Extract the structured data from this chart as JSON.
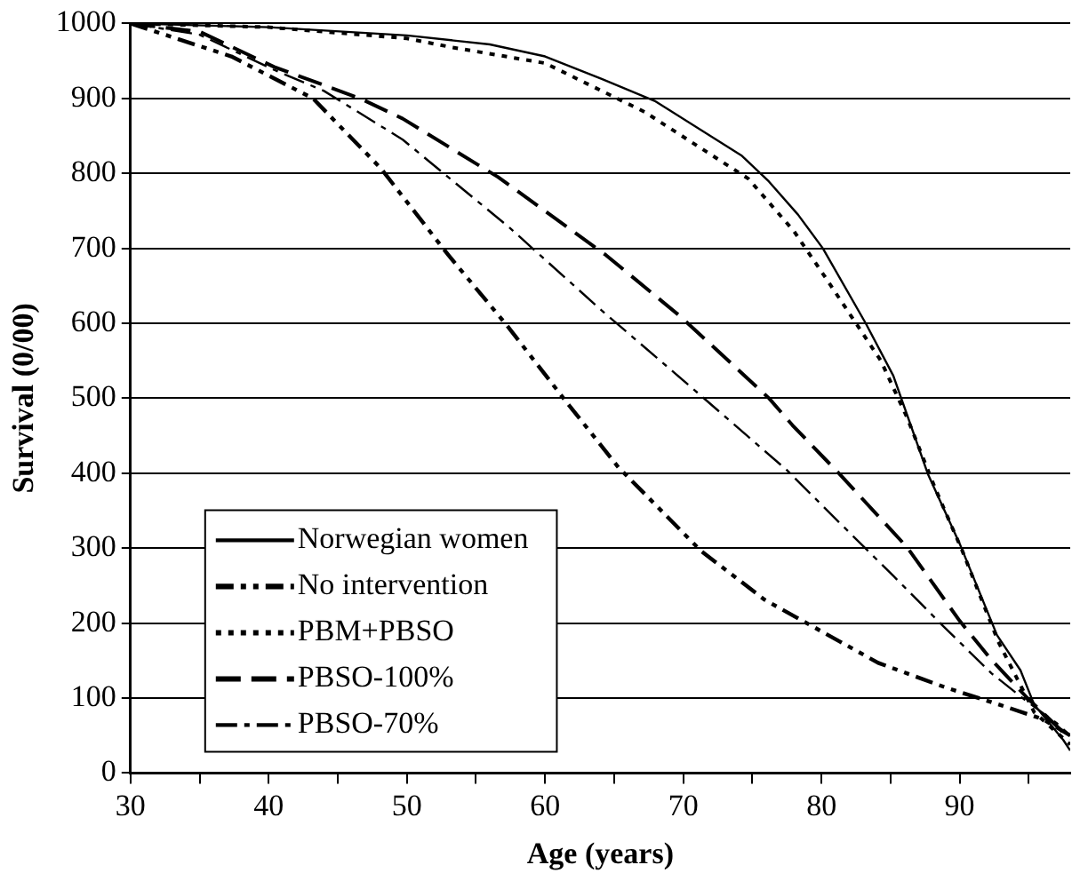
{
  "chart_data": {
    "type": "line",
    "xlabel": "Age (years)",
    "ylabel": "Survival (0/00)",
    "xlim": [
      30,
      98
    ],
    "ylim": [
      0,
      1000
    ],
    "xticks": [
      30,
      {
        "value": 35,
        "label": null
      },
      40,
      {
        "value": 45,
        "label": null
      },
      50,
      {
        "value": 55,
        "label": null
      },
      60,
      {
        "value": 65,
        "label": null
      },
      70,
      {
        "value": 75,
        "label": null
      },
      80,
      {
        "value": 85,
        "label": null
      },
      90,
      {
        "value": 95,
        "label": null
      }
    ],
    "yticks": [
      0,
      100,
      200,
      300,
      400,
      500,
      600,
      700,
      800,
      900,
      1000
    ],
    "grid": "y",
    "legend": "bottom left",
    "marker": "none",
    "series": [
      {
        "name": "Norwegian women",
        "color": "#000000",
        "line_style": "solid",
        "x": [
          30,
          40,
          50,
          56,
          60,
          64.1,
          68,
          74.2,
          76.2,
          78.3,
          80.1,
          83.2,
          85.2,
          87.7,
          90,
          92.7,
          94.4,
          95.4,
          97.5,
          98
        ],
        "values": [
          1000,
          995,
          984,
          972,
          956,
          926,
          896,
          824,
          789,
          745,
          700,
          600,
          530,
          399,
          306,
          184,
          137,
          91,
          44,
          30
        ]
      },
      {
        "name": "No intervention",
        "color": "#000000",
        "line_style": "dashdotdot",
        "x": [
          30,
          37.3,
          43.2,
          48.1,
          53,
          57.2,
          61.5,
          65.3,
          71.3,
          75.9,
          80,
          84.1,
          89,
          92.9,
          96,
          98
        ],
        "values": [
          1000,
          956,
          900,
          807,
          691,
          598,
          496,
          408,
          296,
          231,
          189,
          147,
          114,
          91,
          72,
          50
        ]
      },
      {
        "name": "PBM+PBSO",
        "color": "#000000",
        "line_style": "dotted",
        "x": [
          30,
          40,
          50,
          53.3,
          60,
          67.2,
          74.7,
          78,
          80.4,
          84.3,
          86.2,
          88.2,
          90.2,
          92.8,
          95.4,
          98
        ],
        "values": [
          1000,
          995,
          980,
          968,
          947,
          882,
          793,
          723,
          658,
          550,
          474,
          381,
          296,
          175,
          81,
          38
        ]
      },
      {
        "name": "PBSO-100%",
        "color": "#000000",
        "line_style": "dashed",
        "x": [
          30,
          35,
          40.4,
          46.6,
          49.7,
          56.6,
          64.4,
          69.8,
          76.2,
          77.9,
          81.3,
          86.2,
          90,
          92.3,
          94.9,
          97,
          98
        ],
        "values": [
          1000,
          989,
          942,
          900,
          873,
          795,
          691,
          609,
          500,
          464,
          399,
          301,
          203,
          151,
          100,
          63,
          45
        ]
      },
      {
        "name": "PBSO-70%",
        "color": "#000000",
        "line_style": "dashdot",
        "x": [
          30,
          35,
          40.4,
          44,
          49.7,
          57.4,
          64.1,
          70.3,
          77.5,
          81.3,
          85.2,
          88.7,
          92.3,
          94.9,
          97,
          98
        ],
        "values": [
          1000,
          985,
          938,
          910,
          845,
          728,
          617,
          519,
          404,
          334,
          263,
          198,
          133,
          95,
          67,
          50
        ]
      }
    ]
  }
}
